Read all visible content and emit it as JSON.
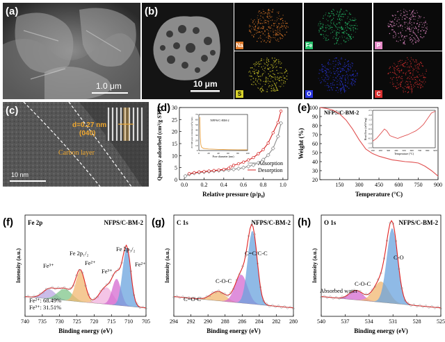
{
  "panels": {
    "a": {
      "label": "(a)",
      "scale": "1.0 μm"
    },
    "b": {
      "label": "(b)",
      "scale": "10 μm",
      "maps": [
        {
          "el": "Na",
          "color": "#e07a2a"
        },
        {
          "el": "Fe",
          "color": "#26c06a"
        },
        {
          "el": "P",
          "color": "#e68bc8"
        },
        {
          "el": "S",
          "color": "#d8d22a"
        },
        {
          "el": "O",
          "color": "#2a36e0"
        },
        {
          "el": "C",
          "color": "#d83030"
        }
      ]
    },
    "c": {
      "label": "(c)",
      "lattice_line1": "d=0.27 nm",
      "lattice_line2": "(040)",
      "carbon": "Carbon layer",
      "scale": "10 nm"
    },
    "d": {
      "label": "(d)"
    },
    "e": {
      "label": "(e)"
    },
    "f": {
      "label": "(f)"
    },
    "g": {
      "label": "(g)"
    },
    "h": {
      "label": "(h)"
    }
  },
  "chart_data": [
    {
      "type": "line",
      "panel": "d",
      "xlabel": "Relative pressure (p/p₀)",
      "ylabel": "Quantity adsorbed (cm³/g STP)",
      "xlim": [
        -0.05,
        1.05
      ],
      "ylim": [
        0,
        30
      ],
      "xticks": [
        "0.0",
        "0.2",
        "0.4",
        "0.6",
        "0.8",
        "1.0"
      ],
      "yticks": [
        "0",
        "5",
        "10",
        "15",
        "20",
        "25",
        "30"
      ],
      "legend": "bottom-right",
      "series": [
        {
          "name": "Adsorption",
          "color": "#8a8a8a",
          "x": [
            0.01,
            0.05,
            0.1,
            0.15,
            0.2,
            0.25,
            0.3,
            0.35,
            0.4,
            0.45,
            0.5,
            0.55,
            0.6,
            0.65,
            0.7,
            0.75,
            0.8,
            0.85,
            0.9,
            0.95,
            0.98
          ],
          "y": [
            1.5,
            2.3,
            2.7,
            3.0,
            3.2,
            3.4,
            3.6,
            3.8,
            4.0,
            4.1,
            4.3,
            4.6,
            5.0,
            5.5,
            6.1,
            7.0,
            8.3,
            10.2,
            13.0,
            18.0,
            23.5
          ]
        },
        {
          "name": "Desorption",
          "color": "#d42020",
          "x": [
            0.98,
            0.95,
            0.9,
            0.85,
            0.8,
            0.75,
            0.7,
            0.65,
            0.6,
            0.55,
            0.5,
            0.47,
            0.45,
            0.4,
            0.35,
            0.3,
            0.25,
            0.2,
            0.15,
            0.1,
            0.05
          ],
          "y": [
            28.5,
            23.8,
            19.5,
            15.2,
            12.5,
            10.8,
            9.2,
            8.2,
            7.3,
            6.6,
            6.0,
            5.3,
            4.7,
            4.3,
            4.0,
            3.8,
            3.6,
            3.4,
            3.2,
            2.9,
            2.5
          ]
        }
      ],
      "inset": {
        "title": "NFPS/C-BM-2",
        "xlabel": "Pore diameter (nm)",
        "ylabel": "dV/dD pore volume (cm³/g·nm)",
        "xticks": [
          "0",
          "20",
          "40",
          "60",
          "80",
          "100"
        ],
        "yticks": [
          "0",
          "10",
          "20",
          "30",
          "40",
          "50",
          "60",
          "70"
        ],
        "xlim": [
          0,
          100
        ],
        "ylim": [
          0,
          70
        ],
        "x": [
          2,
          3,
          4,
          5,
          6,
          8,
          10,
          15,
          20,
          30,
          40,
          50,
          60,
          70,
          80,
          90,
          100
        ],
        "y": [
          65,
          25,
          12,
          8,
          6,
          5,
          4,
          3.5,
          3,
          2.5,
          2.2,
          2,
          1.8,
          1.6,
          1.5,
          1.4,
          1.3
        ]
      }
    },
    {
      "type": "line",
      "panel": "e",
      "title": "NFPS/C-BM-2",
      "xlabel": "Temperature (°C)",
      "ylabel": "Weight (%)",
      "xlim": [
        0,
        900
      ],
      "ylim": [
        20,
        100
      ],
      "xticks": [
        "150",
        "300",
        "450",
        "600",
        "750",
        "900"
      ],
      "yticks": [
        "20",
        "30",
        "40",
        "50",
        "60",
        "70",
        "80",
        "90",
        "100"
      ],
      "series": [
        {
          "name": "",
          "color": "#e05050",
          "x": [
            0,
            50,
            100,
            150,
            200,
            250,
            300,
            350,
            400,
            450,
            500,
            550,
            600,
            650,
            700,
            750,
            800,
            850,
            900
          ],
          "y": [
            100,
            99,
            97,
            93,
            86,
            76,
            64,
            54,
            49,
            46,
            44,
            42,
            41,
            40,
            39.5,
            38.5,
            35,
            30,
            24
          ]
        }
      ],
      "inset": {
        "xlabel": "Temperature (°C)",
        "ylabel": "Heat flow (mW/mg)",
        "xticks": [
          "100",
          "200",
          "300",
          "400",
          "500",
          "600",
          "700",
          "800",
          "900"
        ],
        "yticks": [
          "-1.5",
          "-1.0",
          "-0.5",
          "0.0",
          "0.5",
          "1.0",
          "1.5",
          "2.0",
          "2.5"
        ],
        "xlim": [
          100,
          900
        ],
        "ylim": [
          -1.5,
          2.5
        ],
        "x": [
          100,
          150,
          200,
          250,
          280,
          320,
          380,
          420,
          480,
          550,
          600,
          650,
          700,
          750,
          800,
          850,
          900
        ],
        "y": [
          -0.8,
          -0.5,
          0.0,
          0.5,
          0.3,
          -0.2,
          -0.4,
          -0.5,
          -0.3,
          -0.1,
          0.1,
          0.3,
          0.6,
          1.0,
          1.6,
          2.2,
          2.4
        ]
      }
    },
    {
      "type": "line",
      "panel": "f",
      "title": "Fe 2p",
      "sample": "NFPS/C-BM-2",
      "xlabel": "Binding energy (eV)",
      "ylabel": "Intensity (a.u.)",
      "xlim": [
        740,
        705
      ],
      "xticks": [
        "740",
        "735",
        "730",
        "725",
        "720",
        "715",
        "710",
        "705"
      ],
      "annotations": [
        "Fe³⁺",
        "Fe 2p₁/₂",
        "Fe²⁺",
        "Fe³⁺",
        "Fe 2p₃/₂",
        "Fe²⁺",
        "Fe²⁺: 68.49%",
        "Fe³⁺: 31.51%"
      ],
      "peaks": [
        {
          "center": 733.0,
          "fwhm": 4.5,
          "height": 0.1,
          "color": "#b9a6e2"
        },
        {
          "center": 728.5,
          "fwhm": 5.0,
          "height": 0.12,
          "color": "#7fc58a"
        },
        {
          "center": 724.0,
          "fwhm": 3.2,
          "height": 0.33,
          "color": "#f2b770"
        },
        {
          "center": 716.5,
          "fwhm": 4.5,
          "height": 0.18,
          "color": "#f0b0dd"
        },
        {
          "center": 713.5,
          "fwhm": 3.0,
          "height": 0.28,
          "color": "#d46ad0"
        },
        {
          "center": 710.6,
          "fwhm": 2.8,
          "height": 0.62,
          "color": "#6aa3de"
        }
      ]
    },
    {
      "type": "line",
      "panel": "g",
      "title": "C 1s",
      "sample": "NFPS/C-BM-2",
      "xlabel": "Binding energy (eV)",
      "ylabel": "Intensity (a.u.)",
      "xlim": [
        294,
        280
      ],
      "xticks": [
        "294",
        "292",
        "290",
        "288",
        "286",
        "284",
        "282",
        "280"
      ],
      "annotations": [
        "C=C/C-C",
        "C-O-C",
        "C=O-C"
      ],
      "peaks": [
        {
          "center": 288.8,
          "fwhm": 2.0,
          "height": 0.1,
          "color": "#f2b770"
        },
        {
          "center": 286.1,
          "fwhm": 1.7,
          "height": 0.3,
          "color": "#d46ad0"
        },
        {
          "center": 284.8,
          "fwhm": 1.3,
          "height": 0.78,
          "color": "#6aa3de"
        }
      ]
    },
    {
      "type": "line",
      "panel": "h",
      "title": "O 1s",
      "sample": "NFPS/C-BM-2",
      "xlabel": "Binding energy (eV)",
      "ylabel": "Intensity (a.u.)",
      "xlim": [
        540,
        525
      ],
      "xticks": [
        "540",
        "537",
        "534",
        "531",
        "528",
        "525"
      ],
      "annotations": [
        "C-O",
        "C-O-C",
        "Absorbed water"
      ],
      "peaks": [
        {
          "center": 535.6,
          "fwhm": 2.0,
          "height": 0.1,
          "color": "#d46ad0"
        },
        {
          "center": 532.5,
          "fwhm": 2.2,
          "height": 0.22,
          "color": "#f2b770"
        },
        {
          "center": 531.1,
          "fwhm": 1.6,
          "height": 0.8,
          "color": "#6aa3de"
        }
      ]
    }
  ]
}
